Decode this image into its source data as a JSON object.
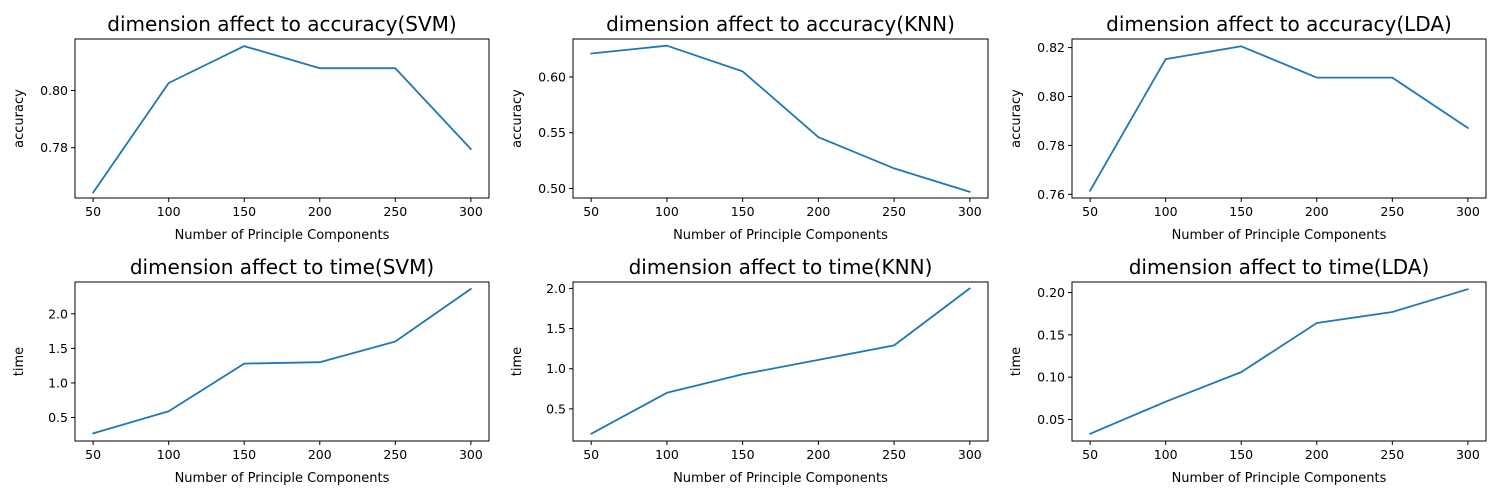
{
  "chart_data": [
    {
      "type": "line",
      "title": "dimension affect to accuracy(SVM)",
      "xlabel": "Number of Principle Components",
      "ylabel": "accuracy",
      "x": [
        50,
        100,
        150,
        200,
        250,
        300
      ],
      "xticks": [
        "50",
        "100",
        "150",
        "200",
        "250",
        "300"
      ],
      "xlim": [
        38,
        312
      ],
      "yticks": [
        0.78,
        0.8
      ],
      "ytick_labels": [
        "0.78",
        "0.80"
      ],
      "ylim": [
        0.7624,
        0.818
      ],
      "series": [
        {
          "values": [
            0.7643,
            0.8026,
            0.8155,
            0.8078,
            0.8078,
            0.7795
          ]
        }
      ],
      "color": "#1f77b4",
      "grid": false
    },
    {
      "type": "line",
      "title": "dimension affect to accuracy(KNN)",
      "xlabel": "Number of Principle Components",
      "ylabel": "accuracy",
      "x": [
        50,
        100,
        150,
        200,
        250,
        300
      ],
      "xticks": [
        "50",
        "100",
        "150",
        "200",
        "250",
        "300"
      ],
      "xlim": [
        38,
        312
      ],
      "yticks": [
        0.5,
        0.55,
        0.6
      ],
      "ytick_labels": [
        "0.50",
        "0.55",
        "0.60"
      ],
      "ylim": [
        0.4915,
        0.634
      ],
      "series": [
        {
          "values": [
            0.621,
            0.628,
            0.605,
            0.546,
            0.518,
            0.497
          ]
        }
      ],
      "color": "#1f77b4",
      "grid": false
    },
    {
      "type": "line",
      "title": "dimension affect to accuracy(LDA)",
      "xlabel": "Number of Principle Components",
      "ylabel": "accuracy",
      "x": [
        50,
        100,
        150,
        200,
        250,
        300
      ],
      "xticks": [
        "50",
        "100",
        "150",
        "200",
        "250",
        "300"
      ],
      "xlim": [
        38,
        312
      ],
      "yticks": [
        0.76,
        0.78,
        0.8,
        0.82
      ],
      "ytick_labels": [
        "0.76",
        "0.78",
        "0.80",
        "0.82"
      ],
      "ylim": [
        0.7585,
        0.8235
      ],
      "series": [
        {
          "values": [
            0.7615,
            0.8153,
            0.8205,
            0.8077,
            0.8077,
            0.7871
          ]
        }
      ],
      "color": "#1f77b4",
      "grid": false
    },
    {
      "type": "line",
      "title": "dimension affect to time(SVM)",
      "xlabel": "Number of Principle Components",
      "ylabel": "time",
      "x": [
        50,
        100,
        150,
        200,
        250,
        300
      ],
      "xticks": [
        "50",
        "100",
        "150",
        "200",
        "250",
        "300"
      ],
      "xlim": [
        38,
        312
      ],
      "yticks": [
        0.5,
        1.0,
        1.5,
        2.0
      ],
      "ytick_labels": [
        "0.5",
        "1.0",
        "1.5",
        "2.0"
      ],
      "ylim": [
        0.16,
        2.46
      ],
      "series": [
        {
          "values": [
            0.27,
            0.59,
            1.28,
            1.3,
            1.6,
            2.36
          ]
        }
      ],
      "color": "#1f77b4",
      "grid": false
    },
    {
      "type": "line",
      "title": "dimension affect to time(KNN)",
      "xlabel": "Number of Principle Components",
      "ylabel": "time",
      "x": [
        50,
        100,
        150,
        200,
        250,
        300
      ],
      "xticks": [
        "50",
        "100",
        "150",
        "200",
        "250",
        "300"
      ],
      "xlim": [
        38,
        312
      ],
      "yticks": [
        0.5,
        1.0,
        1.5,
        2.0
      ],
      "ytick_labels": [
        "0.5",
        "1.0",
        "1.5",
        "2.0"
      ],
      "ylim": [
        0.1,
        2.08
      ],
      "series": [
        {
          "values": [
            0.19,
            0.7,
            0.93,
            1.11,
            1.29,
            2.0
          ]
        }
      ],
      "color": "#1f77b4",
      "grid": false
    },
    {
      "type": "line",
      "title": "dimension affect to time(LDA)",
      "xlabel": "Number of Principle Components",
      "ylabel": "time",
      "x": [
        50,
        100,
        150,
        200,
        250,
        300
      ],
      "xticks": [
        "50",
        "100",
        "150",
        "200",
        "250",
        "300"
      ],
      "xlim": [
        38,
        312
      ],
      "yticks": [
        0.05,
        0.1,
        0.15,
        0.2
      ],
      "ytick_labels": [
        "0.05",
        "0.10",
        "0.15",
        "0.20"
      ],
      "ylim": [
        0.0245,
        0.2125
      ],
      "series": [
        {
          "values": [
            0.033,
            0.071,
            0.106,
            0.164,
            0.177,
            0.204
          ]
        }
      ],
      "color": "#1f77b4",
      "grid": false
    }
  ]
}
